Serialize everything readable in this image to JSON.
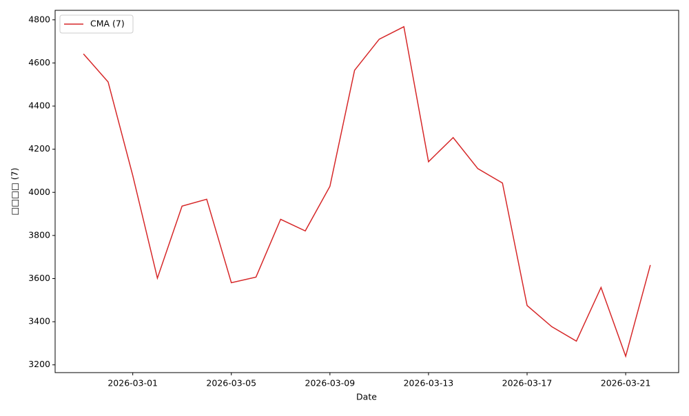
{
  "chart_data": {
    "type": "line",
    "x_label": "Date",
    "y_label": "□□□□ (7)",
    "x": [
      "2026-02-27",
      "2026-02-28",
      "2026-03-01",
      "2026-03-02",
      "2026-03-03",
      "2026-03-04",
      "2026-03-05",
      "2026-03-06",
      "2026-03-07",
      "2026-03-08",
      "2026-03-09",
      "2026-03-10",
      "2026-03-11",
      "2026-03-12",
      "2026-03-13",
      "2026-03-14",
      "2026-03-15",
      "2026-03-16",
      "2026-03-17",
      "2026-03-18",
      "2026-03-19",
      "2026-03-20",
      "2026-03-21",
      "2026-03-22"
    ],
    "series": [
      {
        "name": "CMA (7)",
        "color": "#d62728",
        "values": [
          4642,
          4512,
          4078,
          3602,
          3936,
          3968,
          3581,
          3607,
          3875,
          3821,
          4028,
          4566,
          4710,
          4768,
          4142,
          4254,
          4110,
          4043,
          3475,
          3377,
          3310,
          3559,
          3240,
          3663
        ]
      }
    ],
    "xticks": [
      "2026-03-01",
      "2026-03-05",
      "2026-03-09",
      "2026-03-13",
      "2026-03-17",
      "2026-03-21"
    ],
    "ylim": [
      3164,
      4844
    ],
    "yticks": [
      3200,
      3400,
      3600,
      3800,
      4000,
      4200,
      4400,
      4600,
      4800
    ],
    "legend": "upper left",
    "grid": false
  }
}
